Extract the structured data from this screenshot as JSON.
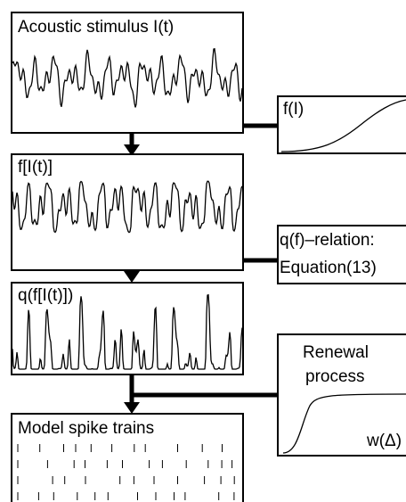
{
  "stages": [
    {
      "label": "Acoustic stimulus I(t)"
    },
    {
      "label": "f[I(t)]"
    },
    {
      "label": "q(f[I(t)])"
    },
    {
      "label": "Model spike trains"
    }
  ],
  "side_boxes": [
    {
      "lines": [
        "f(I)"
      ]
    },
    {
      "lines": [
        "q(f)–relation:",
        "Equation(13)"
      ]
    },
    {
      "lines": [
        "Renewal",
        "process"
      ],
      "axis_label": "w(Δ)"
    }
  ]
}
